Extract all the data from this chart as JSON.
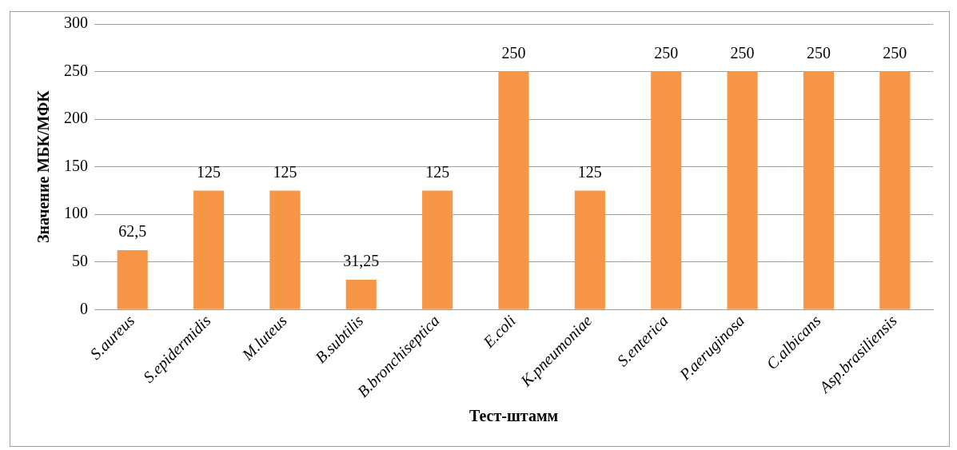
{
  "chart_data": {
    "type": "bar",
    "xlabel": "Тест-штамм",
    "ylabel": "Значение МБК/МФК",
    "categories": [
      "S.aureus",
      "S.epidermidis",
      "M.luteus",
      "B.subtilis",
      "B.bronchiseptica",
      "E.coli",
      "K.pneumoniae",
      "S.enterica",
      "P.aeruginosa",
      "C.albicans",
      "Asp.brasiliensis"
    ],
    "values": [
      62.5,
      125,
      125,
      31.25,
      125,
      250,
      125,
      250,
      250,
      250,
      250
    ],
    "value_labels": [
      "62,5",
      "125",
      "125",
      "31,25",
      "125",
      "250",
      "125",
      "250",
      "250",
      "250",
      "250"
    ],
    "color": "#f79646",
    "ylim": [
      0,
      300
    ],
    "yticks": [
      0,
      50,
      100,
      150,
      200,
      250,
      300
    ],
    "grid": "y",
    "legend": false
  }
}
